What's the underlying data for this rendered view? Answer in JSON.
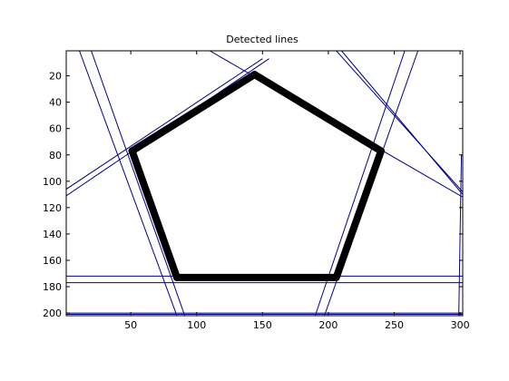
{
  "chart_data": {
    "type": "line",
    "title": "Detected lines",
    "xlabel": "",
    "ylabel": "",
    "xlim": [
      1,
      302
    ],
    "ylim": [
      1,
      202
    ],
    "y_reversed": true,
    "grid": false,
    "legend": "none",
    "xticks": [
      50,
      100,
      150,
      200,
      250,
      300
    ],
    "yticks": [
      20,
      40,
      60,
      80,
      100,
      120,
      140,
      160,
      180,
      200
    ],
    "line_color": "#00008B",
    "shape_color": "#000000",
    "pentagon": {
      "vertices": [
        [
          144,
          19
        ],
        [
          240,
          77
        ],
        [
          206,
          173
        ],
        [
          85,
          173
        ],
        [
          51,
          77
        ]
      ]
    },
    "detected_lines": [
      {
        "name": "",
        "p1": [
          1,
          111
        ],
        "p2": [
          155,
          7
        ]
      },
      {
        "name": "",
        "p1": [
          1,
          106
        ],
        "p2": [
          150,
          7
        ]
      },
      {
        "name": "",
        "p1": [
          210,
          1
        ],
        "p2": [
          302,
          110
        ]
      },
      {
        "name": "",
        "p1": [
          206,
          1
        ],
        "p2": [
          302,
          108
        ]
      },
      {
        "name": "",
        "p1": [
          110,
          1
        ],
        "p2": [
          302,
          112
        ]
      },
      {
        "name": "",
        "p1": [
          20,
          1
        ],
        "p2": [
          91,
          202
        ]
      },
      {
        "name": "",
        "p1": [
          11,
          1
        ],
        "p2": [
          85,
          202
        ]
      },
      {
        "name": "",
        "p1": [
          258,
          1
        ],
        "p2": [
          190,
          202
        ]
      },
      {
        "name": "",
        "p1": [
          268,
          1
        ],
        "p2": [
          197,
          202
        ]
      },
      {
        "name": "",
        "p1": [
          1,
          172
        ],
        "p2": [
          302,
          172
        ]
      },
      {
        "name": "",
        "p1": [
          1,
          177
        ],
        "p2": [
          302,
          177
        ]
      },
      {
        "name": "",
        "p1": [
          1,
          200
        ],
        "p2": [
          302,
          200
        ]
      },
      {
        "name": "",
        "p1": [
          1,
          201
        ],
        "p2": [
          302,
          201
        ]
      },
      {
        "name": "",
        "p1": [
          302,
          60
        ],
        "p2": [
          302,
          202
        ]
      },
      {
        "name": "",
        "p1": [
          301,
          80
        ],
        "p2": [
          299,
          202
        ]
      }
    ]
  }
}
